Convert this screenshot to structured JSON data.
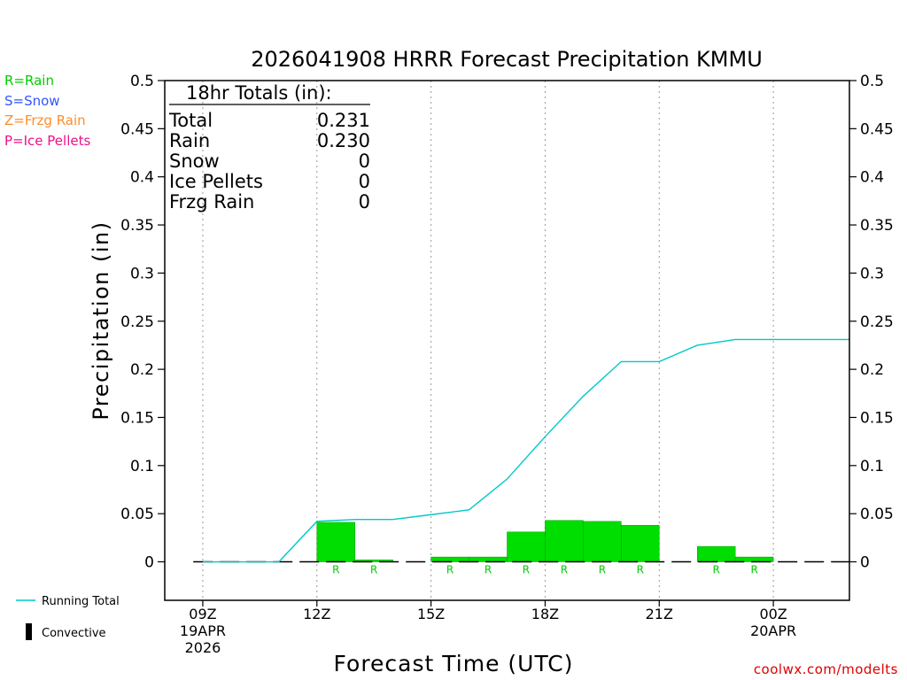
{
  "chart_data": {
    "type": "bar",
    "title": "2026041908 HRRR Forecast Precipitation KMMU",
    "xlabel": "Forecast Time (UTC)",
    "ylabel": "Precipitation (in)",
    "ylim": [
      -0.04,
      0.5
    ],
    "y_ticks": [
      "0",
      "0.05",
      "0.1",
      "0.15",
      "0.2",
      "0.25",
      "0.3",
      "0.35",
      "0.4",
      "0.45",
      "0.5"
    ],
    "x_ticks": [
      {
        "hour": 0,
        "lines": [
          "09Z",
          "19APR",
          "2026"
        ]
      },
      {
        "hour": 3,
        "lines": [
          "12Z"
        ]
      },
      {
        "hour": 6,
        "lines": [
          "15Z"
        ]
      },
      {
        "hour": 9,
        "lines": [
          "18Z"
        ]
      },
      {
        "hour": 12,
        "lines": [
          "21Z"
        ]
      },
      {
        "hour": 15,
        "lines": [
          "00Z",
          "20APR"
        ]
      }
    ],
    "x_range_hours": [
      -1,
      17
    ],
    "bars": [
      {
        "hour": 3,
        "value": 0.041,
        "type": "R"
      },
      {
        "hour": 4,
        "value": 0.002,
        "type": "R"
      },
      {
        "hour": 6,
        "value": 0.005,
        "type": "R"
      },
      {
        "hour": 7,
        "value": 0.005,
        "type": "R"
      },
      {
        "hour": 8,
        "value": 0.031,
        "type": "R"
      },
      {
        "hour": 9,
        "value": 0.043,
        "type": "R"
      },
      {
        "hour": 10,
        "value": 0.042,
        "type": "R"
      },
      {
        "hour": 11,
        "value": 0.038,
        "type": "R"
      },
      {
        "hour": 13,
        "value": 0.016,
        "type": "R"
      },
      {
        "hour": 14,
        "value": 0.005,
        "type": "R"
      }
    ],
    "running_total": {
      "name": "Running Total",
      "hours": [
        0,
        1,
        2,
        3,
        4,
        5,
        6,
        7,
        8,
        9,
        10,
        11,
        12,
        13,
        14,
        15,
        16,
        17
      ],
      "values": [
        0,
        0,
        0,
        0.042,
        0.044,
        0.044,
        0.049,
        0.054,
        0.086,
        0.13,
        0.172,
        0.208,
        0.208,
        0.225,
        0.231,
        0.231,
        0.231,
        0.231
      ]
    },
    "colors": {
      "bar": "#00dd00",
      "line": "#00c8c8",
      "rain": "#00cc00",
      "snow": "#3355ff",
      "frzg_rain": "#ff8c2a",
      "ice_pellets": "#ee1188",
      "credit": "#dd0000"
    }
  },
  "precip_legend": {
    "rain": "R=Rain",
    "snow": "S=Snow",
    "frzg_rain": "Z=Frzg Rain",
    "ice_pellets": "P=Ice Pellets"
  },
  "series_legend": {
    "running_total": "Running Total",
    "convective": "Convective"
  },
  "totals": {
    "header": "18hr Totals (in):",
    "rows": [
      {
        "label": "Total",
        "value": "0.231"
      },
      {
        "label": "Rain",
        "value": "0.230"
      },
      {
        "label": "Snow",
        "value": "0"
      },
      {
        "label": "Ice Pellets",
        "value": "0"
      },
      {
        "label": "Frzg Rain",
        "value": "0"
      }
    ]
  },
  "credit": "coolwx.com/modelts"
}
